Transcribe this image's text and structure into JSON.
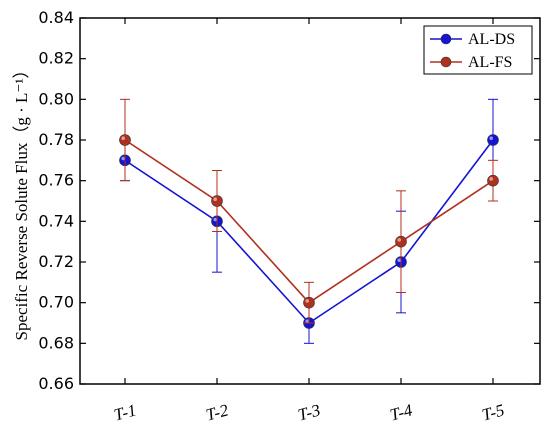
{
  "chart_data": {
    "type": "line",
    "categories": [
      "T-1",
      "T-2",
      "T-3",
      "T-4",
      "T-5"
    ],
    "series": [
      {
        "name": "AL-DS",
        "color": "#1414d2",
        "values": [
          0.77,
          0.74,
          0.69,
          0.72,
          0.78
        ],
        "errors": [
          0.01,
          0.025,
          0.01,
          0.025,
          0.02
        ]
      },
      {
        "name": "AL-FS",
        "color": "#b0301e",
        "values": [
          0.78,
          0.75,
          0.7,
          0.73,
          0.76
        ],
        "errors": [
          0.02,
          0.015,
          0.01,
          0.025,
          0.01
        ]
      }
    ],
    "ylabel": "Specific Reverse Solute Flux（g · L⁻¹）",
    "xlabel": "",
    "ylim": [
      0.66,
      0.84
    ],
    "yticks": [
      "0.66",
      "0.68",
      "0.70",
      "0.72",
      "0.74",
      "0.76",
      "0.78",
      "0.80",
      "0.82",
      "0.84"
    ],
    "legend_position": "top-right",
    "grid": false
  }
}
